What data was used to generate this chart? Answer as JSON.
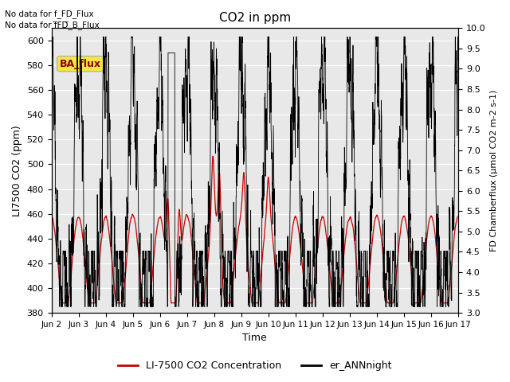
{
  "title": "CO2 in ppm",
  "xlabel": "Time",
  "ylabel_left": "LI7500 CO2 (ppm)",
  "ylabel_right": "FD Chamberflux (μmol CO2 m-2 s-1)",
  "text_no_data_1": "No data for f_FD_Flux",
  "text_no_data_2": "No data for f̅FD̅_B_Flux",
  "ba_flux_label": "BA_flux",
  "ylim_left": [
    380,
    610
  ],
  "ylim_right": [
    3.0,
    10.0
  ],
  "yticks_left": [
    380,
    400,
    420,
    440,
    460,
    480,
    500,
    520,
    540,
    560,
    580,
    600
  ],
  "yticks_right": [
    3.0,
    3.5,
    4.0,
    4.5,
    5.0,
    5.5,
    6.0,
    6.5,
    7.0,
    7.5,
    8.0,
    8.5,
    9.0,
    9.5,
    10.0
  ],
  "xtick_labels": [
    "Jun 2",
    "Jun 3",
    "Jun 4",
    "Jun 5",
    "Jun 6",
    "Jun 7",
    "Jun 8",
    "Jun 9",
    "Jun 10",
    "Jun 11",
    "Jun 12",
    "Jun 13",
    "Jun 14",
    "Jun 15",
    "Jun 16",
    "Jun 17"
  ],
  "legend_red_label": "LI-7500 CO2 Concentration",
  "legend_black_label": "er_ANNnight",
  "plot_bg_color": "#e8e8e8",
  "red_color": "#cc0000",
  "black_color": "#000000",
  "grid_color": "#ffffff"
}
